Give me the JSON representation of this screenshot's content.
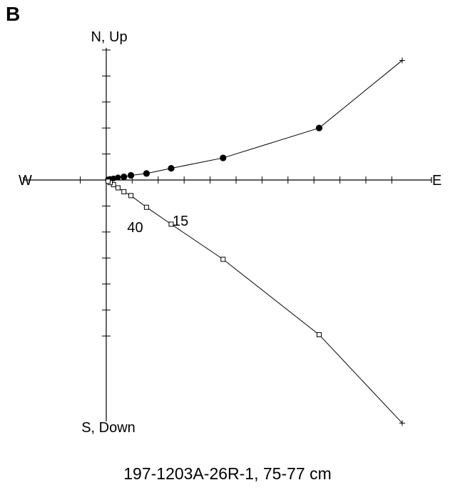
{
  "panel_label": "B",
  "caption": "197-1203A-26R-1, 75-77 cm",
  "chart_data": {
    "type": "scatter",
    "plot_kind": "orthogonal vector projection (Zijderveld)",
    "axis_labels": {
      "north_up": "N, Up",
      "south_down": "S, Down",
      "west": "W",
      "east": "E"
    },
    "xlim": [
      -3.2,
      12.4
    ],
    "ylim": [
      -9.4,
      5.2
    ],
    "ticks": {
      "horizontal": [
        -1,
        1,
        2,
        3,
        4,
        5,
        6,
        7,
        8,
        9,
        10,
        11
      ],
      "vertical_up": [
        1,
        2,
        3,
        4,
        5
      ],
      "vertical_down": [
        -1,
        -2,
        -3,
        -4,
        -5,
        -6
      ]
    },
    "series": [
      {
        "marker": "filled-circle",
        "points": [
          {
            "x": 11.4,
            "y": 4.6
          },
          {
            "x": 8.2,
            "y": 2.0
          },
          {
            "x": 4.5,
            "y": 0.85
          },
          {
            "x": 2.5,
            "y": 0.45
          },
          {
            "x": 1.55,
            "y": 0.25
          },
          {
            "x": 0.95,
            "y": 0.18
          },
          {
            "x": 0.68,
            "y": 0.12
          },
          {
            "x": 0.45,
            "y": 0.1
          },
          {
            "x": 0.28,
            "y": 0.06
          },
          {
            "x": 0.15,
            "y": 0.04
          },
          {
            "x": 0.07,
            "y": 0.02
          }
        ]
      },
      {
        "marker": "open-square",
        "points": [
          {
            "x": 11.4,
            "y": -9.35
          },
          {
            "x": 8.2,
            "y": -5.95
          },
          {
            "x": 4.5,
            "y": -3.05
          },
          {
            "x": 2.5,
            "y": -1.7
          },
          {
            "x": 1.55,
            "y": -1.05
          },
          {
            "x": 0.95,
            "y": -0.6
          },
          {
            "x": 0.68,
            "y": -0.45
          },
          {
            "x": 0.45,
            "y": -0.3
          },
          {
            "x": 0.28,
            "y": -0.18
          },
          {
            "x": 0.15,
            "y": -0.1
          },
          {
            "x": 0.07,
            "y": -0.05
          }
        ]
      }
    ],
    "annotations": [
      {
        "text": "15",
        "x": 2.5,
        "y": -1.7
      },
      {
        "text": "40",
        "x": 0.45,
        "y": -0.3
      }
    ],
    "grid": false,
    "legend": "none"
  }
}
